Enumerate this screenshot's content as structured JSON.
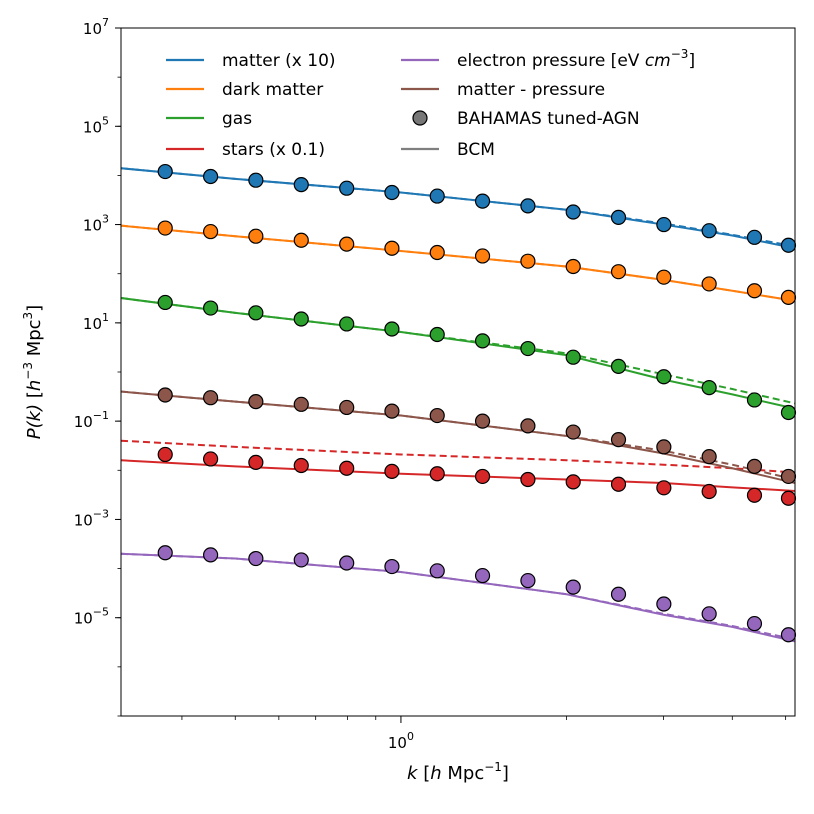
{
  "chart_data": {
    "type": "line",
    "xscale": "log",
    "yscale": "log",
    "xlim": [
      0.31,
      5.2
    ],
    "ylim": [
      1e-07,
      10000000
    ],
    "x_ticks": [
      {
        "value": 1,
        "label": "10",
        "exp": "0"
      }
    ],
    "y_ticks": [
      {
        "value": 1e-05,
        "label": "10",
        "exp": "−5"
      },
      {
        "value": 0.001,
        "label": "10",
        "exp": "−3"
      },
      {
        "value": 0.1,
        "label": "10",
        "exp": "−1"
      },
      {
        "value": 10,
        "label": "10",
        "exp": "1"
      },
      {
        "value": 1000,
        "label": "10",
        "exp": "3"
      },
      {
        "value": 100000,
        "label": "10",
        "exp": "5"
      },
      {
        "value": 10000000,
        "label": "10",
        "exp": "7"
      }
    ],
    "xlabel": {
      "var": "k",
      "open": " [",
      "h": "h",
      "unit": " Mpc",
      "exp": "−1",
      "close": "]"
    },
    "ylabel": {
      "var": "P(k)",
      "open": " [",
      "h": "h",
      "hexp": "−3",
      "unit": " Mpc",
      "exp": "3",
      "close": "]"
    },
    "x_points": [
      0.373,
      0.451,
      0.545,
      0.659,
      0.797,
      0.963,
      1.164,
      1.407,
      1.701,
      2.056,
      2.485,
      3.004,
      3.631,
      4.389,
      5.06
    ],
    "series": [
      {
        "name": "matter (x 10)",
        "color": "#1f77b4",
        "line_x": [
          0.31,
          0.5,
          1.0,
          2.0,
          3.0,
          4.0,
          5.2
        ],
        "line_y": [
          14000,
          8500,
          4500,
          2000,
          1000,
          600,
          330
        ],
        "dash_y": [
          14000,
          8500,
          4500,
          2000,
          1050,
          620,
          360
        ],
        "points": [
          12000,
          9500,
          8000,
          6500,
          5500,
          4500,
          3800,
          3000,
          2400,
          1800,
          1400,
          1000,
          750,
          550,
          380
        ]
      },
      {
        "name": "dark matter",
        "color": "#ff7f0e",
        "line_x": [
          0.31,
          0.5,
          1.0,
          2.0,
          3.0,
          4.0,
          5.2
        ],
        "line_y": [
          950,
          580,
          290,
          140,
          75,
          45,
          28
        ],
        "dash_y": [
          950,
          580,
          290,
          140,
          75,
          45,
          28
        ],
        "points": [
          850,
          720,
          580,
          480,
          400,
          330,
          270,
          230,
          180,
          140,
          110,
          85,
          62,
          45,
          33
        ]
      },
      {
        "name": "gas",
        "color": "#2ca02c",
        "line_x": [
          0.31,
          0.5,
          1.0,
          2.0,
          3.0,
          4.0,
          5.2
        ],
        "line_y": [
          32,
          16,
          6.5,
          2.2,
          0.7,
          0.35,
          0.18
        ],
        "dash_y": [
          32,
          16,
          6.5,
          2.4,
          0.9,
          0.45,
          0.23
        ],
        "points": [
          26,
          20,
          16,
          12,
          9.5,
          7.5,
          5.8,
          4.3,
          3.0,
          2.0,
          1.3,
          0.8,
          0.48,
          0.27,
          0.15
        ]
      },
      {
        "name": "stars (x 0.1)",
        "color": "#d62728",
        "line_x": [
          0.31,
          0.5,
          1.0,
          2.0,
          3.0,
          4.0,
          5.2
        ],
        "line_y": [
          0.016,
          0.012,
          0.0085,
          0.0065,
          0.0055,
          0.0045,
          0.0038
        ],
        "dash_y": [
          0.04,
          0.03,
          0.021,
          0.016,
          0.013,
          0.011,
          0.009
        ],
        "points": [
          0.021,
          0.017,
          0.0145,
          0.0125,
          0.011,
          0.0095,
          0.0085,
          0.0075,
          0.0065,
          0.0058,
          0.0052,
          0.0044,
          0.0037,
          0.0031,
          0.0027
        ]
      },
      {
        "name": "matter - pressure",
        "color": "#8c564b",
        "line_x": [
          0.31,
          0.5,
          1.0,
          2.0,
          3.0,
          4.0,
          5.2
        ],
        "line_y": [
          0.4,
          0.25,
          0.13,
          0.05,
          0.022,
          0.011,
          0.0055
        ],
        "dash_y": [
          0.4,
          0.25,
          0.13,
          0.05,
          0.025,
          0.013,
          0.0065
        ],
        "points": [
          0.34,
          0.3,
          0.25,
          0.22,
          0.19,
          0.16,
          0.13,
          0.1,
          0.08,
          0.06,
          0.042,
          0.03,
          0.019,
          0.012,
          0.0075
        ]
      },
      {
        "name": "electron pressure [eV cm⁻³]",
        "color": "#9467bd",
        "line_x": [
          0.31,
          0.5,
          1.0,
          2.0,
          3.0,
          4.0,
          5.2
        ],
        "line_y": [
          0.0002,
          0.00016,
          8.5e-05,
          3e-05,
          1.15e-05,
          6.5e-06,
          3.3e-06
        ],
        "dash_y": [
          0.0002,
          0.00016,
          8.5e-05,
          3e-05,
          1.2e-05,
          6.8e-06,
          3.6e-06
        ],
        "points": [
          0.00021,
          0.00019,
          0.00016,
          0.00015,
          0.00013,
          0.00011,
          9e-05,
          7.2e-05,
          5.7e-05,
          4.2e-05,
          3e-05,
          1.9e-05,
          1.2e-05,
          7.6e-06,
          4.5e-06
        ]
      }
    ],
    "legend": [
      [
        {
          "label": "matter (x 10)",
          "kind": "line",
          "color": "#1f77b4"
        },
        {
          "label": "dark matter",
          "kind": "line",
          "color": "#ff7f0e"
        },
        {
          "label": "gas",
          "kind": "line",
          "color": "#2ca02c"
        },
        {
          "label": "stars (x 0.1)",
          "kind": "line",
          "color": "#d62728"
        }
      ],
      [
        {
          "label": "electron pressure [eV ",
          "label_var": "cm",
          "label_exp": "−3",
          "label_end": "]",
          "kind": "line",
          "color": "#9467bd"
        },
        {
          "label": "matter - pressure",
          "kind": "line",
          "color": "#8c564b"
        },
        {
          "label": "BAHAMAS tuned-AGN",
          "kind": "marker",
          "color": "#777777"
        },
        {
          "label": "BCM",
          "kind": "line",
          "color": "#7f7f7f"
        }
      ]
    ]
  }
}
